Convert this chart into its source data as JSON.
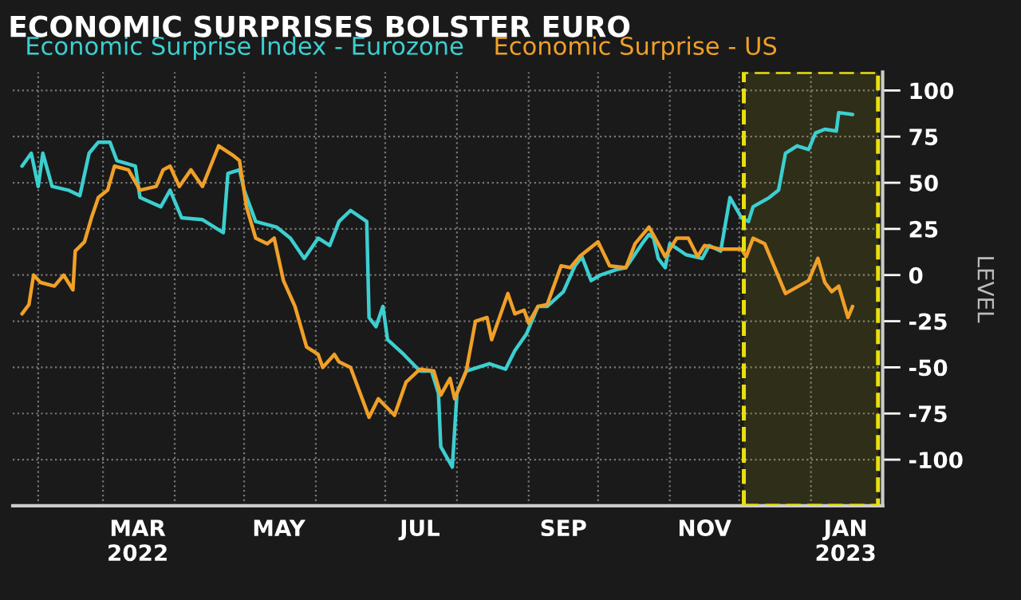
{
  "chart_data": {
    "type": "line",
    "title": "ECONOMIC SURPRISES BOLSTER EURO",
    "ylabel": "LEVEL",
    "series": [
      {
        "name": "Economic Surprise Index - Eurozone",
        "color": "#3ccfd0",
        "x": [
          "2022-01-25",
          "2022-01-29",
          "2022-02-01",
          "2022-02-03",
          "2022-02-07",
          "2022-02-14",
          "2022-02-19",
          "2022-02-23",
          "2022-02-27",
          "2022-03-04",
          "2022-03-07",
          "2022-03-15",
          "2022-03-17",
          "2022-03-26",
          "2022-03-30",
          "2022-04-04",
          "2022-04-13",
          "2022-04-22",
          "2022-04-24",
          "2022-04-29",
          "2022-05-01",
          "2022-05-06",
          "2022-05-15",
          "2022-05-21",
          "2022-05-27",
          "2022-06-02",
          "2022-06-07",
          "2022-06-11",
          "2022-06-16",
          "2022-06-23",
          "2022-06-24",
          "2022-06-27",
          "2022-06-30",
          "2022-07-02",
          "2022-07-09",
          "2022-07-16",
          "2022-07-21",
          "2022-07-24",
          "2022-07-25",
          "2022-07-30",
          "2022-08-01",
          "2022-08-05",
          "2022-08-15",
          "2022-08-22",
          "2022-08-26",
          "2022-08-31",
          "2022-09-05",
          "2022-09-09",
          "2022-09-16",
          "2022-09-21",
          "2022-09-24",
          "2022-09-28",
          "2022-10-02",
          "2022-10-09",
          "2022-10-13",
          "2022-10-20",
          "2022-10-23",
          "2022-10-25",
          "2022-10-27",
          "2022-10-30",
          "2022-11-01",
          "2022-11-08",
          "2022-11-15",
          "2022-11-18",
          "2022-11-23",
          "2022-11-27",
          "2022-12-02",
          "2022-12-05",
          "2022-12-07",
          "2022-12-14",
          "2022-12-18",
          "2022-12-21",
          "2022-12-26",
          "2022-12-31",
          "2023-01-03",
          "2023-01-07",
          "2023-01-12",
          "2023-01-13",
          "2023-01-19"
        ],
        "values": [
          59,
          66,
          48,
          66,
          48,
          46,
          43,
          66,
          72,
          72,
          62,
          59,
          42,
          37,
          46,
          31,
          30,
          23,
          55,
          57,
          46,
          29,
          26,
          20,
          9,
          20,
          16,
          29,
          35,
          29,
          -23,
          -28,
          -17,
          -35,
          -43,
          -52,
          -52,
          -64,
          -93,
          -104,
          -64,
          -52,
          -48,
          -51,
          -41,
          -32,
          -17,
          -17,
          -9,
          5,
          10,
          -3,
          0,
          3,
          4,
          17,
          22,
          20,
          9,
          4,
          17,
          11,
          9,
          16,
          13,
          42,
          31,
          29,
          37,
          42,
          46,
          66,
          70,
          68,
          77,
          79,
          78,
          88,
          87
        ]
      },
      {
        "name": "Economic Surprise - US",
        "color": "#f0a028",
        "x": [
          "2022-01-25",
          "2022-01-28",
          "2022-01-30",
          "2022-02-02",
          "2022-02-08",
          "2022-02-12",
          "2022-02-16",
          "2022-02-17",
          "2022-02-21",
          "2022-02-24",
          "2022-02-27",
          "2022-03-03",
          "2022-03-06",
          "2022-03-12",
          "2022-03-17",
          "2022-03-24",
          "2022-03-27",
          "2022-03-30",
          "2022-04-03",
          "2022-04-08",
          "2022-04-13",
          "2022-04-20",
          "2022-04-26",
          "2022-04-29",
          "2022-05-02",
          "2022-05-06",
          "2022-05-11",
          "2022-05-14",
          "2022-05-18",
          "2022-05-23",
          "2022-05-28",
          "2022-06-02",
          "2022-06-04",
          "2022-06-09",
          "2022-06-11",
          "2022-06-16",
          "2022-06-24",
          "2022-06-28",
          "2022-07-05",
          "2022-07-10",
          "2022-07-16",
          "2022-07-22",
          "2022-07-25",
          "2022-07-29",
          "2022-07-31",
          "2022-08-05",
          "2022-08-09",
          "2022-08-14",
          "2022-08-16",
          "2022-08-23",
          "2022-08-26",
          "2022-08-30",
          "2022-09-01",
          "2022-09-05",
          "2022-09-09",
          "2022-09-15",
          "2022-09-19",
          "2022-09-23",
          "2022-10-01",
          "2022-10-06",
          "2022-10-13",
          "2022-10-17",
          "2022-10-23",
          "2022-10-27",
          "2022-10-30",
          "2022-11-04",
          "2022-11-09",
          "2022-11-13",
          "2022-11-16",
          "2022-11-23",
          "2022-12-02",
          "2022-12-04",
          "2022-12-07",
          "2022-12-12",
          "2022-12-21",
          "2022-12-31",
          "2023-01-04",
          "2023-01-07",
          "2023-01-10",
          "2023-01-13",
          "2023-01-17",
          "2023-01-19"
        ],
        "values": [
          -21,
          -16,
          0,
          -4,
          -6,
          0,
          -8,
          13,
          18,
          31,
          42,
          46,
          59,
          57,
          46,
          48,
          57,
          59,
          48,
          57,
          48,
          70,
          65,
          62,
          37,
          20,
          17,
          20,
          -3,
          -17,
          -39,
          -43,
          -50,
          -43,
          -47,
          -50,
          -77,
          -67,
          -76,
          -58,
          -51,
          -52,
          -65,
          -56,
          -67,
          -52,
          -25,
          -23,
          -35,
          -10,
          -21,
          -19,
          -26,
          -17,
          -16,
          5,
          4,
          10,
          18,
          5,
          4,
          17,
          26,
          17,
          10,
          20,
          20,
          10,
          16,
          14,
          14,
          10,
          20,
          17,
          -10,
          -3,
          9,
          -4,
          -9,
          -6,
          -23,
          -17
        ]
      }
    ],
    "xlim": [
      "2022-01-21",
      "2023-02-01"
    ],
    "xticks": [
      {
        "value": "2022-02-01",
        "label": null
      },
      {
        "value": "2022-03-01",
        "label": null
      },
      {
        "value": "2022-03-16",
        "label": "MAR\n2022"
      },
      {
        "value": "2022-04-01",
        "label": null
      },
      {
        "value": "2022-05-01",
        "label": null
      },
      {
        "value": "2022-05-16",
        "label": "MAY"
      },
      {
        "value": "2022-06-01",
        "label": null
      },
      {
        "value": "2022-07-01",
        "label": null
      },
      {
        "value": "2022-07-16",
        "label": "JUL"
      },
      {
        "value": "2022-08-01",
        "label": null
      },
      {
        "value": "2022-09-01",
        "label": null
      },
      {
        "value": "2022-09-16",
        "label": "SEP"
      },
      {
        "value": "2022-10-01",
        "label": null
      },
      {
        "value": "2022-11-01",
        "label": null
      },
      {
        "value": "2022-11-16",
        "label": "NOV"
      },
      {
        "value": "2022-12-01",
        "label": null
      },
      {
        "value": "2023-01-01",
        "label": null
      },
      {
        "value": "2023-01-16",
        "label": "JAN\n2023"
      }
    ],
    "ylim": [
      -125,
      110
    ],
    "yticks": [
      -100,
      -75,
      -50,
      -25,
      0,
      25,
      50,
      75,
      100
    ],
    "bands": [
      {
        "axis": "x",
        "from": "2022-12-03",
        "to": "2023-01-30",
        "color": "#e8e010"
      }
    ],
    "grid": true,
    "legend": "top left",
    "line_style": "solid",
    "marker": "none"
  }
}
